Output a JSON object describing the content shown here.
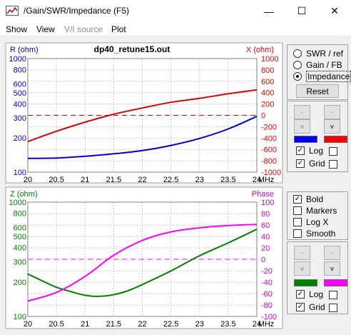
{
  "window": {
    "title": "/Gain/SWR/Impedance (F5)",
    "controls": {
      "minimize": "—",
      "maximize": "☐",
      "close": "✕"
    }
  },
  "menu": {
    "items": [
      "Show",
      "View",
      "V/I source",
      "Plot"
    ],
    "disabled_index": 2
  },
  "top_chart": {
    "title": "dp40_retune15.out",
    "left_axis_label": "R (ohm)",
    "right_axis_label": "X (ohm)",
    "left_ticks": [
      "1000",
      "800",
      "600",
      "500",
      "400",
      "300",
      "200",
      "100"
    ],
    "right_ticks": [
      "1000",
      "800",
      "600",
      "400",
      "200",
      "0",
      "-200",
      "-400",
      "-600",
      "-800",
      "-1000"
    ],
    "x_ticks": [
      "20",
      "20.5",
      "21",
      "21.5",
      "22",
      "22.5",
      "23",
      "23.5",
      "24"
    ],
    "x_unit": "MHz"
  },
  "bottom_chart": {
    "left_axis_label": "Z (ohm)",
    "right_axis_label": "Phase",
    "left_ticks": [
      "1000",
      "800",
      "600",
      "500",
      "400",
      "300",
      "200",
      "100"
    ],
    "right_ticks": [
      "100",
      "80",
      "60",
      "40",
      "20",
      "0",
      "-20",
      "-40",
      "-60",
      "-80",
      "-100"
    ],
    "x_ticks": [
      "20",
      "20.5",
      "21",
      "21.5",
      "22",
      "22.5",
      "23",
      "23.5",
      "24"
    ],
    "x_unit": "MHz"
  },
  "chart_data": [
    {
      "type": "line",
      "title": "dp40_retune15.out",
      "xlabel": "MHz",
      "ylabel": "R (ohm)",
      "y2label": "X (ohm)",
      "xlim": [
        20,
        24
      ],
      "ylim": [
        100,
        1000
      ],
      "y_scale": "log",
      "y2lim": [
        -1000,
        1000
      ],
      "grid": true,
      "series": [
        {
          "name": "R (ohm)",
          "axis": "left",
          "color": "#0000cc",
          "x": [
            20,
            20.5,
            21,
            21.5,
            22,
            22.5,
            23,
            23.5,
            24
          ],
          "y": [
            132,
            133,
            138,
            145,
            155,
            172,
            198,
            240,
            310
          ]
        },
        {
          "name": "X (ohm)",
          "axis": "right",
          "color": "#dd0000",
          "x": [
            20,
            20.5,
            21,
            21.5,
            22,
            22.5,
            23,
            23.5,
            24
          ],
          "y": [
            -460,
            -280,
            -120,
            20,
            130,
            230,
            300,
            380,
            450
          ]
        }
      ],
      "reference_line": {
        "axis": "right",
        "value": 0,
        "color": "#dd0000",
        "style": "dashed"
      }
    },
    {
      "type": "line",
      "xlabel": "MHz",
      "ylabel": "Z (ohm)",
      "y2label": "Phase",
      "xlim": [
        20,
        24
      ],
      "ylim": [
        100,
        1000
      ],
      "y_scale": "log",
      "y2lim": [
        -100,
        100
      ],
      "grid": true,
      "series": [
        {
          "name": "Z (ohm)",
          "axis": "left",
          "color": "#008000",
          "x": [
            20,
            20.25,
            20.5,
            20.75,
            21,
            21.25,
            21.5,
            21.75,
            22,
            22.5,
            23,
            23.5,
            24
          ],
          "y": [
            235,
            205,
            180,
            165,
            153,
            150,
            155,
            168,
            190,
            250,
            340,
            440,
            580
          ]
        },
        {
          "name": "Phase",
          "axis": "right",
          "color": "#ff00ff",
          "x": [
            20,
            20.5,
            21,
            21.5,
            22,
            22.5,
            23,
            23.5,
            24
          ],
          "y": [
            -73,
            -58,
            -30,
            7,
            33,
            48,
            55,
            59,
            61
          ]
        }
      ],
      "reference_line": {
        "axis": "right",
        "value": 0,
        "color": "#ff00ff",
        "style": "dashed"
      }
    }
  ],
  "right_panel": {
    "radios": [
      {
        "label": "SWR / ref",
        "checked": false
      },
      {
        "label": "Gain / FB",
        "checked": false
      },
      {
        "label": "Impedance",
        "checked": true
      }
    ],
    "reset_label": "Reset",
    "top_controls": {
      "btn_up": "-",
      "btn_down": "v",
      "left_color": "#0000ff",
      "right_color": "#ff0000",
      "log_label": "Log",
      "log_checked": true,
      "log_right_checked": false,
      "grid_label": "Grid",
      "grid_checked": true,
      "grid_right_checked": false
    },
    "options": [
      {
        "label": "Bold",
        "checked": true
      },
      {
        "label": "Markers",
        "checked": false
      },
      {
        "label": "Log X",
        "checked": false
      },
      {
        "label": "Smooth",
        "checked": false
      }
    ],
    "bottom_controls": {
      "btn_up": "-",
      "btn_down": "v",
      "left_color": "#008000",
      "right_color": "#ff00ff",
      "log_label": "Log",
      "log_checked": true,
      "log_right_checked": false,
      "grid_label": "Grid",
      "grid_checked": true,
      "grid_right_checked": false
    }
  }
}
